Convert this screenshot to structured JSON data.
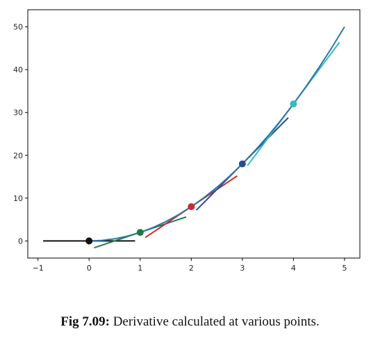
{
  "caption": {
    "label": "Fig 7.09:",
    "text": " Derivative calculated at various points."
  },
  "chart_data": {
    "type": "line",
    "title": "",
    "xlabel": "",
    "ylabel": "",
    "xlim": [
      -1.2,
      5.3
    ],
    "ylim": [
      -4,
      54
    ],
    "xticks": [
      -1,
      0,
      1,
      2,
      3,
      4,
      5
    ],
    "xtick_labels": [
      "−1",
      "0",
      "1",
      "2",
      "3",
      "4",
      "5"
    ],
    "yticks": [
      0,
      10,
      20,
      30,
      40,
      50
    ],
    "ytick_labels": [
      "0",
      "10",
      "20",
      "30",
      "40",
      "50"
    ],
    "grid": false,
    "legend": "none",
    "curve": {
      "color": "#2f75a7",
      "x": [
        0,
        0.25,
        0.5,
        0.75,
        1,
        1.25,
        1.5,
        1.75,
        2,
        2.25,
        2.5,
        2.75,
        3,
        3.25,
        3.5,
        3.75,
        4,
        4.25,
        4.5,
        4.75,
        5
      ],
      "y": [
        0,
        0.125,
        0.5,
        1.125,
        2,
        3.125,
        4.5,
        6.125,
        8,
        10.125,
        12.5,
        15.125,
        18,
        21.125,
        24.5,
        28.125,
        32,
        36.125,
        40.5,
        45.125,
        50
      ]
    },
    "points": [
      {
        "x": 0,
        "y": 0,
        "color": "#111111"
      },
      {
        "x": 1,
        "y": 2,
        "color": "#1e7a45"
      },
      {
        "x": 2,
        "y": 8,
        "color": "#cc2a2f"
      },
      {
        "x": 3,
        "y": 18,
        "color": "#2c4a9a"
      },
      {
        "x": 4,
        "y": 32,
        "color": "#2fbcc6"
      }
    ],
    "tangents": [
      {
        "x": [
          -0.9,
          0.9
        ],
        "y": [
          0,
          0
        ],
        "color": "#111111"
      },
      {
        "x": [
          0.1,
          1.9
        ],
        "y": [
          -1.6,
          5.6
        ],
        "color": "#1e7a45"
      },
      {
        "x": [
          1.1,
          2.9
        ],
        "y": [
          0.8,
          15.2
        ],
        "color": "#cc2a2f"
      },
      {
        "x": [
          2.1,
          3.9
        ],
        "y": [
          7.2,
          28.8
        ],
        "color": "#2c4a9a"
      },
      {
        "x": [
          3.1,
          4.9
        ],
        "y": [
          17.6,
          46.4
        ],
        "color": "#2fbcc6"
      }
    ]
  }
}
